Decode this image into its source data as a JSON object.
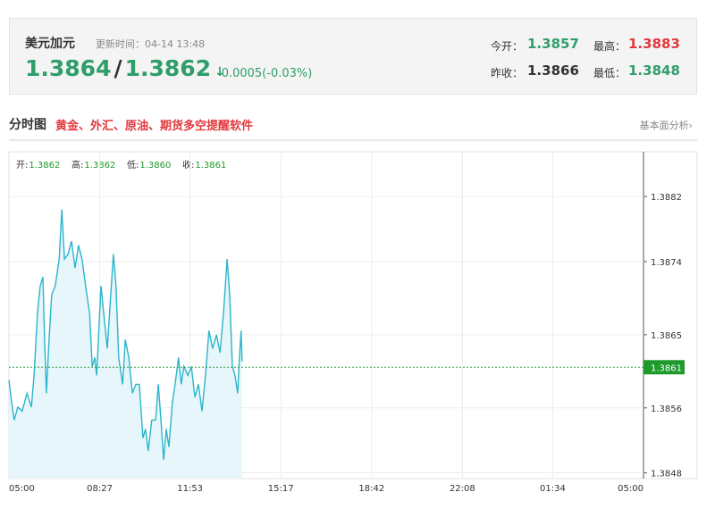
{
  "header": {
    "title": "美元加元",
    "update_label": "更新时间：",
    "update_time": "04-14 13:48",
    "price_a": "1.3864",
    "separator": "/",
    "price_b": "1.3862",
    "change": "-0.0005(-0.03%)",
    "stats": [
      {
        "label": "今开：",
        "value": "1.3857"
      },
      {
        "label": "最高：",
        "value": "1.3883"
      },
      {
        "label": "昨收：",
        "value": "1.3866"
      },
      {
        "label": "最低：",
        "value": "1.3848"
      }
    ]
  },
  "section": {
    "title": "分时图",
    "promo": "黄金、外汇、原油、期货多空提醒软件",
    "link": "基本面分析›"
  },
  "chart_data": {
    "type": "line",
    "info": [
      {
        "label": "开:",
        "value": "1.3862"
      },
      {
        "label": "高:",
        "value": "1.3862"
      },
      {
        "label": "低:",
        "value": "1.3860"
      },
      {
        "label": "收:",
        "value": "1.3861"
      }
    ],
    "last_value": 1.3861,
    "x": [
      0,
      6,
      12,
      20,
      30,
      41,
      51,
      57,
      65,
      71,
      77,
      81,
      85,
      91,
      97,
      105,
      114,
      120,
      126,
      134,
      142,
      150,
      158,
      166,
      174,
      183,
      189,
      195,
      199,
      203,
      209,
      217,
      223,
      231,
      237,
      243,
      249,
      258,
      264,
      272,
      280,
      288,
      296,
      304,
      310,
      316,
      324,
      333,
      339,
      345,
      351,
      357,
      363,
      371,
      377,
      385,
      391,
      397,
      406,
      414,
      422,
      430,
      438,
      446,
      454,
      462,
      471,
      479,
      487,
      495,
      501,
      507,
      513,
      519,
      523,
      527,
      529
    ],
    "series": [
      {
        "color": "#2bb5cc",
        "values": [
          1.38594,
          1.38567,
          1.38545,
          1.38561,
          1.38556,
          1.38578,
          1.38561,
          1.386,
          1.38677,
          1.3871,
          1.38721,
          1.38644,
          1.38578,
          1.38644,
          1.38699,
          1.3871,
          1.38743,
          1.38804,
          1.38743,
          1.38749,
          1.38765,
          1.38732,
          1.3876,
          1.38743,
          1.3871,
          1.38677,
          1.38611,
          1.38622,
          1.386,
          1.38644,
          1.3871,
          1.38666,
          1.38633,
          1.38699,
          1.38749,
          1.3871,
          1.38622,
          1.38589,
          1.38644,
          1.38622,
          1.38578,
          1.38589,
          1.38589,
          1.38523,
          1.38534,
          1.38507,
          1.38545,
          1.38545,
          1.38589,
          1.38545,
          1.38496,
          1.38534,
          1.38512,
          1.38567,
          1.38589,
          1.38622,
          1.38589,
          1.38611,
          1.386,
          1.38611,
          1.38573,
          1.38589,
          1.38556,
          1.386,
          1.38655,
          1.38633,
          1.3865,
          1.38628,
          1.38677,
          1.38743,
          1.38699,
          1.38611,
          1.386,
          1.38578,
          1.38622,
          1.38655,
          1.38617
        ]
      }
    ],
    "xlim": [
      0,
      1440
    ],
    "xticks": [
      {
        "value": 0,
        "label": "05:00"
      },
      {
        "value": 206,
        "label": "08:27"
      },
      {
        "value": 411,
        "label": "11:53"
      },
      {
        "value": 617,
        "label": "15:17"
      },
      {
        "value": 823,
        "label": "18:42"
      },
      {
        "value": 1029,
        "label": "22:08"
      },
      {
        "value": 1234,
        "label": "01:34"
      },
      {
        "value": 1440,
        "label": "05:00"
      }
    ],
    "ylim": [
      1.38473,
      1.38875
    ],
    "yticks": [
      1.3848,
      1.3856,
      1.3865,
      1.3874,
      1.3882
    ],
    "grid": true
  }
}
